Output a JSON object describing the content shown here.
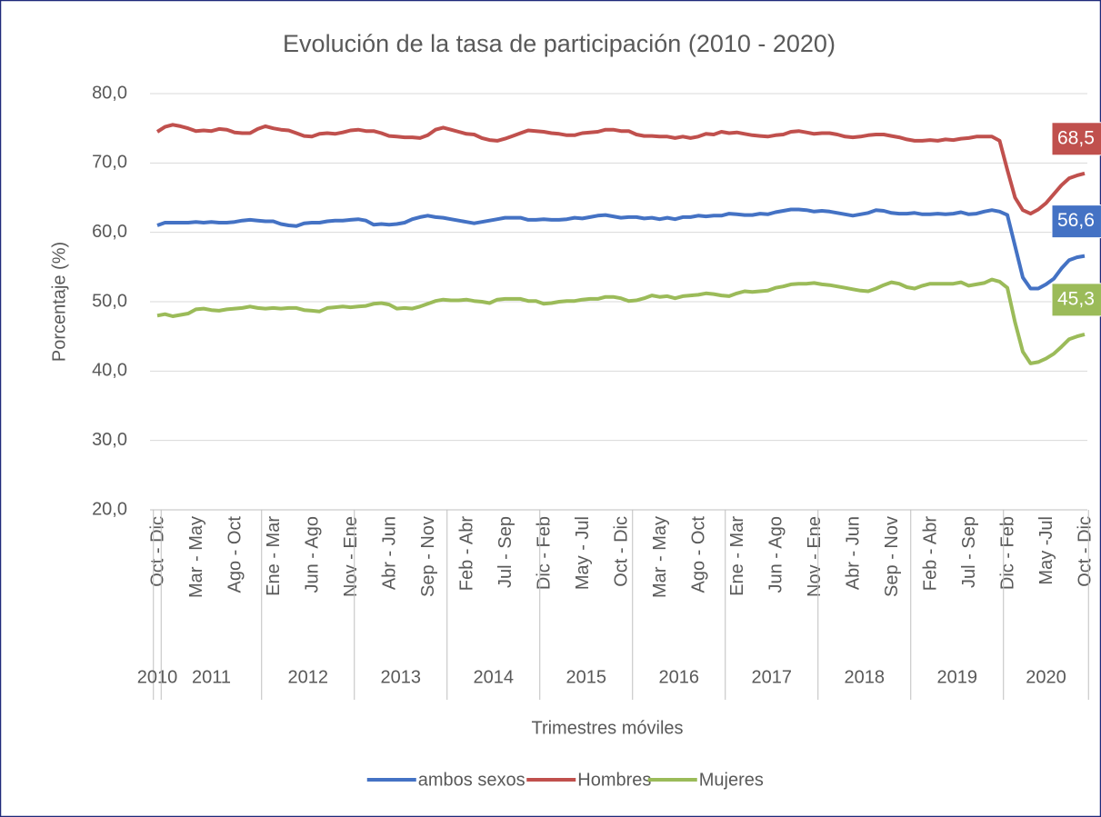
{
  "chart_data": {
    "type": "line",
    "title": "Evolución de la tasa de participación (2010 - 2020)",
    "y_label": "Porcentaje (%)",
    "x_label": "Trimestres móviles",
    "categories": [
      "Oct - Dic",
      null,
      null,
      null,
      null,
      "Mar - May",
      null,
      null,
      null,
      null,
      "Ago - Oct",
      null,
      null,
      null,
      null,
      "Ene - Mar",
      null,
      null,
      null,
      null,
      "Jun - Ago",
      null,
      null,
      null,
      null,
      "Nov - Ene",
      null,
      null,
      null,
      null,
      "Abr - Jun",
      null,
      null,
      null,
      null,
      "Sep - Nov",
      null,
      null,
      null,
      null,
      "Feb - Abr",
      null,
      null,
      null,
      null,
      "Jul - Sep",
      null,
      null,
      null,
      null,
      "Dic - Feb",
      null,
      null,
      null,
      null,
      "May - Jul",
      null,
      null,
      null,
      null,
      "Oct - Dic",
      null,
      null,
      null,
      null,
      "Mar - May",
      null,
      null,
      null,
      null,
      "Ago - Oct",
      null,
      null,
      null,
      null,
      "Ene - Mar",
      null,
      null,
      null,
      null,
      "Jun - Ago",
      null,
      null,
      null,
      null,
      "Nov - Ene",
      null,
      null,
      null,
      null,
      "Abr - Jun",
      null,
      null,
      null,
      null,
      "Sep - Nov",
      null,
      null,
      null,
      null,
      "Feb - Abr",
      null,
      null,
      null,
      null,
      "Jul - Sep",
      null,
      null,
      null,
      null,
      "Dic - Feb",
      null,
      null,
      null,
      null,
      "May -Jul",
      null,
      null,
      null,
      null,
      "Oct - Dic"
    ],
    "year_groups": [
      {
        "label": "2010",
        "start": 0,
        "end": 0
      },
      {
        "label": "2011",
        "start": 1,
        "end": 13
      },
      {
        "label": "2012",
        "start": 14,
        "end": 25
      },
      {
        "label": "2013",
        "start": 26,
        "end": 37
      },
      {
        "label": "2014",
        "start": 38,
        "end": 49
      },
      {
        "label": "2015",
        "start": 50,
        "end": 61
      },
      {
        "label": "2016",
        "start": 62,
        "end": 73
      },
      {
        "label": "2017",
        "start": 74,
        "end": 85
      },
      {
        "label": "2018",
        "start": 86,
        "end": 97
      },
      {
        "label": "2019",
        "start": 98,
        "end": 109
      },
      {
        "label": "2020",
        "start": 110,
        "end": 120
      }
    ],
    "series": [
      {
        "name": "ambos sexos",
        "color": "#4472c4",
        "values": [
          61.0,
          61.4,
          61.4,
          61.4,
          61.4,
          61.5,
          61.4,
          61.5,
          61.4,
          61.4,
          61.5,
          61.7,
          61.8,
          61.7,
          61.6,
          61.6,
          61.2,
          61.0,
          60.9,
          61.3,
          61.4,
          61.4,
          61.6,
          61.7,
          61.7,
          61.8,
          61.9,
          61.7,
          61.1,
          61.2,
          61.1,
          61.2,
          61.4,
          61.9,
          62.2,
          62.4,
          62.2,
          62.1,
          61.9,
          61.7,
          61.5,
          61.3,
          61.5,
          61.7,
          61.9,
          62.1,
          62.1,
          62.1,
          61.8,
          61.8,
          61.9,
          61.8,
          61.8,
          61.9,
          62.1,
          62.0,
          62.2,
          62.4,
          62.5,
          62.3,
          62.1,
          62.2,
          62.2,
          62.0,
          62.1,
          61.9,
          62.1,
          61.9,
          62.2,
          62.2,
          62.4,
          62.3,
          62.4,
          62.4,
          62.7,
          62.6,
          62.5,
          62.5,
          62.7,
          62.6,
          62.9,
          63.1,
          63.3,
          63.3,
          63.2,
          63.0,
          63.1,
          63.0,
          62.8,
          62.6,
          62.4,
          62.6,
          62.8,
          63.2,
          63.1,
          62.8,
          62.7,
          62.7,
          62.8,
          62.6,
          62.6,
          62.7,
          62.6,
          62.7,
          62.9,
          62.6,
          62.7,
          63.0,
          63.2,
          63.0,
          62.5,
          58.0,
          53.5,
          51.9,
          51.9,
          52.5,
          53.3,
          54.8,
          56.0,
          56.4,
          56.6
        ],
        "value_labels": {
          "120": "56,6"
        }
      },
      {
        "name": "Hombres",
        "color": "#c0504d",
        "values": [
          74.5,
          75.2,
          75.5,
          75.3,
          75.0,
          74.6,
          74.7,
          74.6,
          74.9,
          74.8,
          74.4,
          74.3,
          74.3,
          74.9,
          75.3,
          75.0,
          74.8,
          74.7,
          74.3,
          73.9,
          73.8,
          74.2,
          74.3,
          74.2,
          74.4,
          74.7,
          74.8,
          74.6,
          74.6,
          74.3,
          73.9,
          73.8,
          73.7,
          73.7,
          73.6,
          74.0,
          74.8,
          75.1,
          74.8,
          74.5,
          74.2,
          74.1,
          73.6,
          73.3,
          73.2,
          73.5,
          73.9,
          74.3,
          74.7,
          74.6,
          74.5,
          74.3,
          74.2,
          74.0,
          74.0,
          74.3,
          74.4,
          74.5,
          74.8,
          74.8,
          74.6,
          74.6,
          74.1,
          73.9,
          73.9,
          73.8,
          73.8,
          73.6,
          73.8,
          73.6,
          73.8,
          74.2,
          74.1,
          74.5,
          74.3,
          74.4,
          74.2,
          74.0,
          73.9,
          73.8,
          74.0,
          74.1,
          74.5,
          74.6,
          74.4,
          74.2,
          74.3,
          74.3,
          74.1,
          73.8,
          73.7,
          73.8,
          74.0,
          74.1,
          74.1,
          73.9,
          73.7,
          73.4,
          73.2,
          73.2,
          73.3,
          73.2,
          73.4,
          73.3,
          73.5,
          73.6,
          73.8,
          73.8,
          73.8,
          73.2,
          69.0,
          65.0,
          63.2,
          62.7,
          63.3,
          64.2,
          65.5,
          66.8,
          67.8,
          68.2,
          68.5
        ],
        "value_labels": {
          "120": "68,5"
        }
      },
      {
        "name": "Mujeres",
        "color": "#9bbb59",
        "values": [
          48.0,
          48.2,
          47.9,
          48.1,
          48.3,
          48.9,
          49.0,
          48.8,
          48.7,
          48.9,
          49.0,
          49.1,
          49.3,
          49.1,
          49.0,
          49.1,
          49.0,
          49.1,
          49.1,
          48.8,
          48.7,
          48.6,
          49.1,
          49.2,
          49.3,
          49.2,
          49.3,
          49.4,
          49.7,
          49.8,
          49.6,
          49.0,
          49.1,
          49.0,
          49.3,
          49.7,
          50.1,
          50.3,
          50.2,
          50.2,
          50.3,
          50.1,
          50.0,
          49.8,
          50.3,
          50.4,
          50.4,
          50.4,
          50.1,
          50.1,
          49.7,
          49.8,
          50.0,
          50.1,
          50.1,
          50.3,
          50.4,
          50.4,
          50.7,
          50.7,
          50.5,
          50.1,
          50.2,
          50.5,
          50.9,
          50.7,
          50.8,
          50.5,
          50.8,
          50.9,
          51.0,
          51.2,
          51.1,
          50.9,
          50.8,
          51.2,
          51.5,
          51.4,
          51.5,
          51.6,
          52.0,
          52.2,
          52.5,
          52.6,
          52.6,
          52.7,
          52.5,
          52.4,
          52.2,
          52.0,
          51.8,
          51.6,
          51.5,
          51.9,
          52.4,
          52.8,
          52.6,
          52.1,
          51.9,
          52.3,
          52.6,
          52.6,
          52.6,
          52.6,
          52.8,
          52.3,
          52.5,
          52.7,
          53.2,
          52.9,
          52.0,
          47.0,
          42.8,
          41.1,
          41.3,
          41.8,
          42.5,
          43.5,
          44.6,
          45.0,
          45.3
        ],
        "value_labels": {
          "120": "45,3"
        }
      }
    ],
    "ylim": [
      20,
      80
    ],
    "yticks": [
      {
        "value": 20,
        "label": "20,0"
      },
      {
        "value": 30,
        "label": "30,0"
      },
      {
        "value": 40,
        "label": "40,0"
      },
      {
        "value": 50,
        "label": "50,0"
      },
      {
        "value": 60,
        "label": "60,0"
      },
      {
        "value": 70,
        "label": "70,0"
      },
      {
        "value": 80,
        "label": "80,0"
      }
    ],
    "grid": true,
    "legend": "bottom"
  }
}
